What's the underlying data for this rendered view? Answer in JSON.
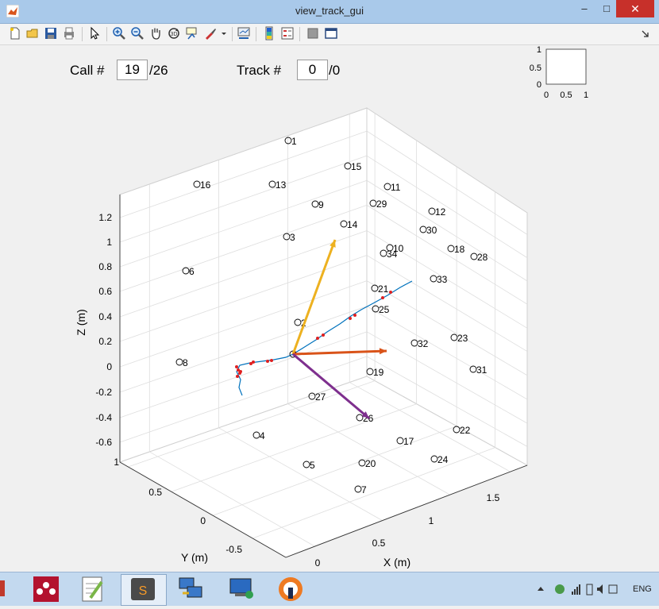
{
  "window": {
    "title": "view_track_gui",
    "minimize": "–",
    "maximize": "□",
    "close": "✕"
  },
  "controls": {
    "call_label": "Call #",
    "call_value": "19",
    "call_total": "/26",
    "track_label": "Track #",
    "track_value": "0",
    "track_total": "/0"
  },
  "inset_axes": {
    "yticks": [
      "1",
      "0.5",
      "0"
    ],
    "xticks": [
      "0",
      "0.5",
      "1"
    ]
  },
  "chart_data": {
    "type": "scatter3d",
    "xlabel": "X (m)",
    "ylabel": "Y (m)",
    "zlabel": "Z (m)",
    "zticks": [
      "1.2",
      "1",
      "0.8",
      "0.6",
      "0.4",
      "0.2",
      "0",
      "-0.2",
      "-0.4",
      "-0.6"
    ],
    "yticks": [
      "1",
      "0.5",
      "0",
      "-0.5"
    ],
    "xticks": [
      "0",
      "0.5",
      "1",
      "1.5"
    ],
    "grid": true,
    "marker_labels": [
      "1",
      "2",
      "3",
      "4",
      "5",
      "6",
      "7",
      "8",
      "9",
      "10",
      "11",
      "12",
      "13",
      "14",
      "15",
      "16",
      "17",
      "18",
      "19",
      "20",
      "21",
      "22",
      "23",
      "24",
      "25",
      "26",
      "27",
      "28",
      "29",
      "30",
      "31",
      "32",
      "33",
      "34"
    ],
    "arrows": [
      {
        "color": "#edb120"
      },
      {
        "color": "#d95319"
      },
      {
        "color": "#7e2f8e"
      }
    ],
    "track_color": "#0072bd",
    "point_color": "#e02020"
  },
  "taskbar": {
    "language": "ENG"
  }
}
